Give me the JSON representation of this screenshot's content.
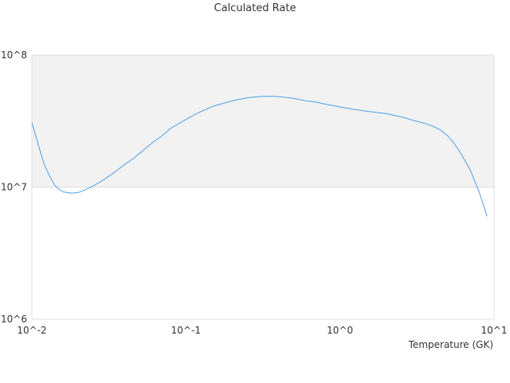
{
  "chart_data": {
    "type": "line",
    "title": "Calculated Rate",
    "xlabel": "Temperature (GK)",
    "ylabel": "",
    "xscale": "log",
    "yscale": "log",
    "xlim": [
      0.01,
      10
    ],
    "ylim": [
      1000000,
      100000000
    ],
    "x_ticks": [
      "10^-2",
      "10^-1",
      "10^0",
      "10^1"
    ],
    "y_ticks": [
      "10^6",
      "10^7",
      "10^8"
    ],
    "grid": true,
    "colors": {
      "line": "#4e9ee8",
      "band": "#f2f2f2",
      "grid": "#dddddd"
    },
    "series": [
      {
        "x": [
          0.01,
          0.011,
          0.012,
          0.013,
          0.014,
          0.015,
          0.016,
          0.018,
          0.02,
          0.022,
          0.025,
          0.028,
          0.032,
          0.036,
          0.04,
          0.045,
          0.05,
          0.06,
          0.07,
          0.08,
          0.1,
          0.12,
          0.15,
          0.2,
          0.25,
          0.3,
          0.35,
          0.4,
          0.5,
          0.6,
          0.7,
          0.8,
          1.0,
          1.2,
          1.5,
          2.0,
          2.5,
          3.0,
          3.5,
          4.0,
          4.5,
          5.0,
          5.5,
          6.0,
          7.0,
          8.0,
          9.0
        ],
        "y": [
          31000000,
          21000000,
          15000000,
          12200000,
          10400000,
          9600000,
          9200000,
          9000000,
          9100000,
          9500000,
          10200000,
          11000000,
          12200000,
          13500000,
          14800000,
          16300000,
          18000000,
          21500000,
          24500000,
          28000000,
          32500000,
          36500000,
          41000000,
          45000000,
          47500000,
          48500000,
          48800000,
          48500000,
          47000000,
          45000000,
          44000000,
          42500000,
          40500000,
          39000000,
          37500000,
          36000000,
          34000000,
          32000000,
          30500000,
          29000000,
          27000000,
          24500000,
          21500000,
          18500000,
          13500000,
          9200000,
          6000000
        ]
      }
    ]
  }
}
